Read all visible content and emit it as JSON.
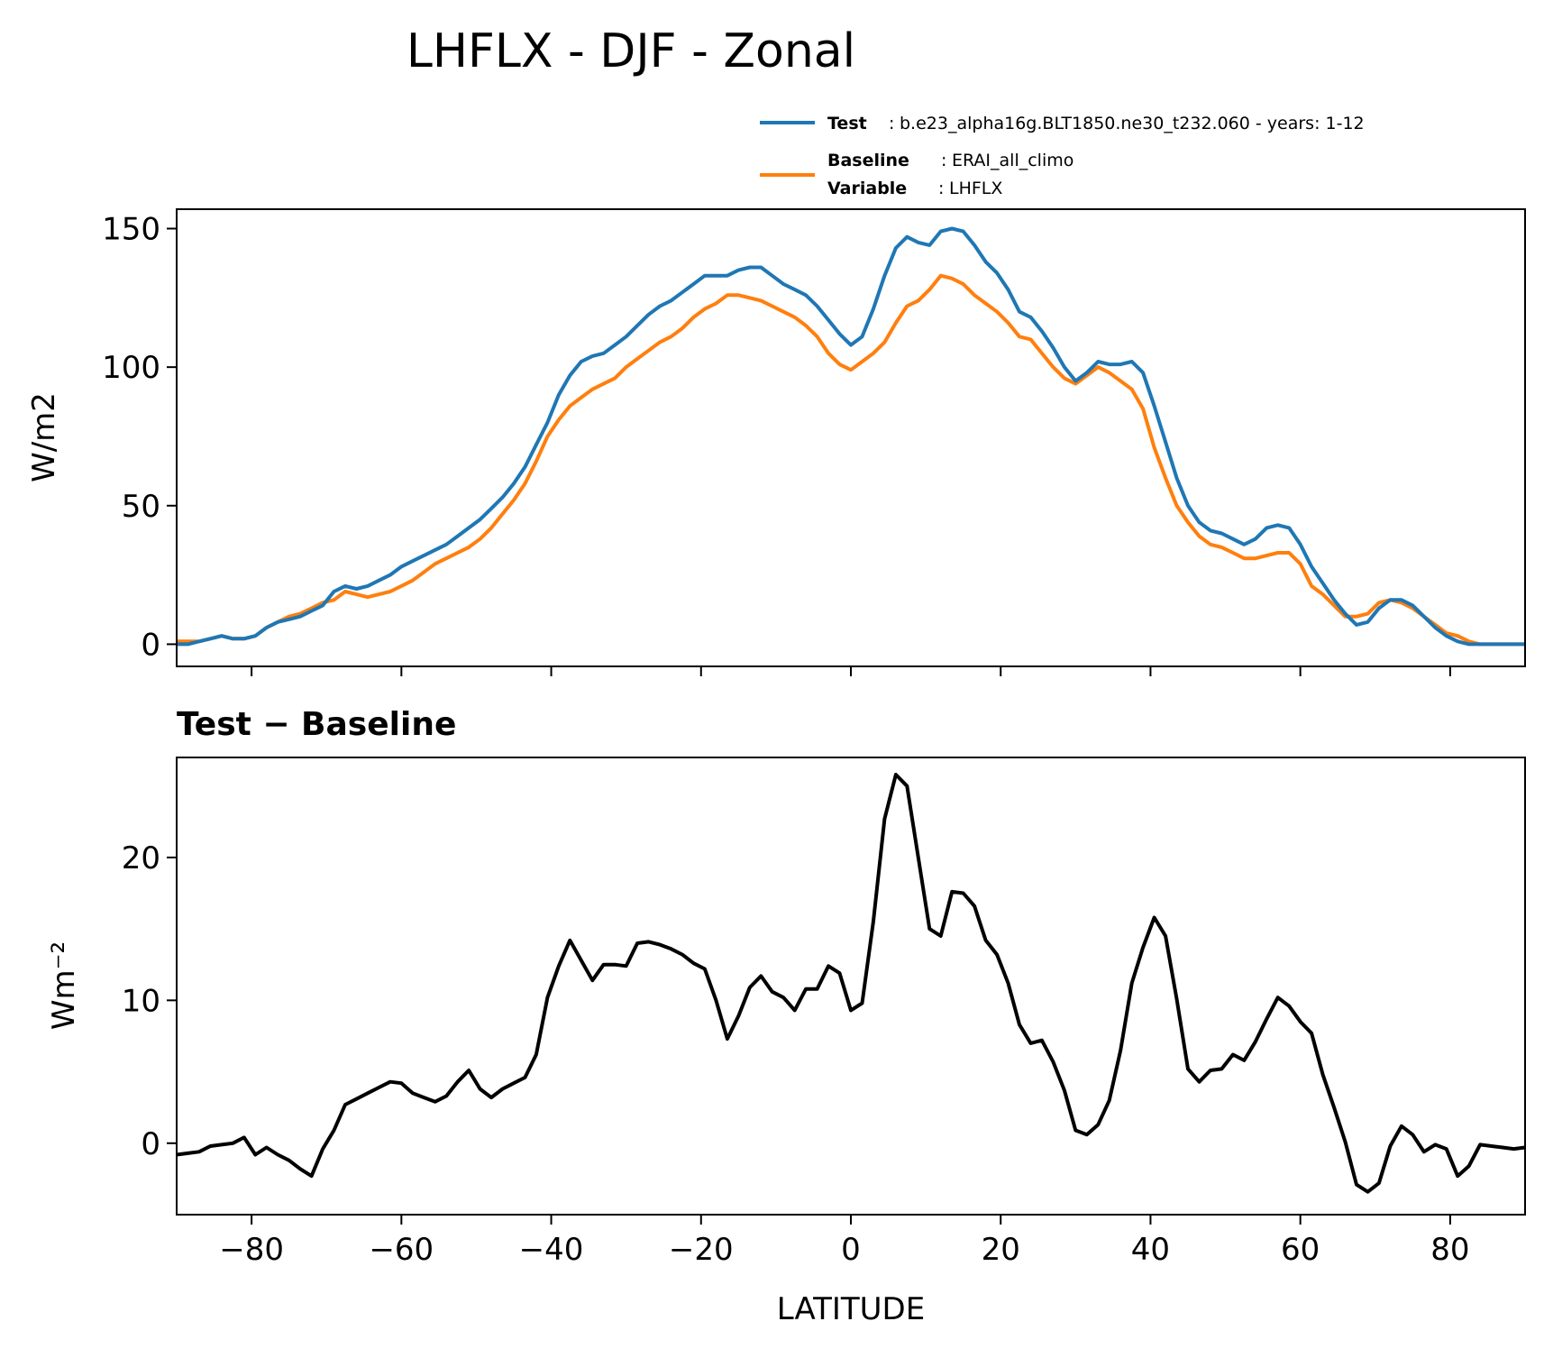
{
  "title": "LHFLX - DJF - Zonal",
  "legend": {
    "test_label": "Test",
    "test_value": "b.e23_alpha16g.BLT1850.ne30_t232.060 - years: 1-12",
    "baseline_label": "Baseline",
    "baseline_value": "ERAI_all_climo",
    "variable_label": "Variable",
    "variable_value": "LHFLX",
    "sep": ":"
  },
  "colors": {
    "test": "#1f77b4",
    "baseline": "#ff7f0e",
    "diff": "#000000"
  },
  "chart_data": [
    {
      "type": "line",
      "ylabel": "W/m2",
      "xlim": [
        -90,
        90
      ],
      "ylim": [
        -8,
        157
      ],
      "yticks": [
        0,
        50,
        100,
        150
      ],
      "x": [
        -90,
        -88.5,
        -87,
        -85.5,
        -84,
        -82.5,
        -81,
        -79.5,
        -78,
        -76.5,
        -75,
        -73.5,
        -72,
        -70.5,
        -69,
        -67.5,
        -66,
        -64.5,
        -63,
        -61.5,
        -60,
        -58.5,
        -57,
        -55.5,
        -54,
        -52.5,
        -51,
        -49.5,
        -48,
        -46.5,
        -45,
        -43.5,
        -42,
        -40.5,
        -39,
        -37.5,
        -36,
        -34.5,
        -33,
        -31.5,
        -30,
        -28.5,
        -27,
        -25.5,
        -24,
        -22.5,
        -21,
        -19.5,
        -18,
        -16.5,
        -15,
        -13.5,
        -12,
        -10.5,
        -9,
        -7.5,
        -6,
        -4.5,
        -3,
        -1.5,
        0,
        1.5,
        3,
        4.5,
        6,
        7.5,
        9,
        10.5,
        12,
        13.5,
        15,
        16.5,
        18,
        19.5,
        21,
        22.5,
        24,
        25.5,
        27,
        28.5,
        30,
        31.5,
        33,
        34.5,
        36,
        37.5,
        39,
        40.5,
        42,
        43.5,
        45,
        46.5,
        48,
        49.5,
        51,
        52.5,
        54,
        55.5,
        57,
        58.5,
        60,
        61.5,
        63,
        64.5,
        66,
        67.5,
        69,
        70.5,
        72,
        73.5,
        75,
        76.5,
        78,
        79.5,
        81,
        82.5,
        84,
        85.5,
        87,
        88.5,
        90
      ],
      "series": [
        {
          "name": "Test",
          "values": [
            0,
            0,
            1,
            2,
            3,
            2,
            2,
            3,
            6,
            8,
            9,
            10,
            12,
            14,
            19,
            21,
            20,
            21,
            23,
            25,
            28,
            30,
            32,
            34,
            36,
            39,
            42,
            45,
            49,
            53,
            58,
            64,
            72,
            80,
            90,
            97,
            102,
            104,
            105,
            108,
            111,
            115,
            119,
            122,
            124,
            127,
            130,
            133,
            133,
            133,
            135,
            136,
            136,
            133,
            130,
            128,
            126,
            122,
            117,
            112,
            108,
            111,
            121,
            133,
            143,
            147,
            145,
            144,
            149,
            150,
            149,
            144,
            138,
            134,
            128,
            120,
            118,
            113,
            107,
            100,
            95,
            98,
            102,
            101,
            101,
            102,
            98,
            86,
            73,
            60,
            50,
            44,
            41,
            40,
            38,
            36,
            38,
            42,
            43,
            42,
            36,
            28,
            22,
            16,
            11,
            7,
            8,
            13,
            16,
            16,
            14,
            10,
            6,
            3,
            1,
            0,
            0,
            0,
            0,
            0,
            0
          ]
        },
        {
          "name": "Baseline",
          "values": [
            1,
            1,
            1,
            2,
            3,
            2,
            2,
            3,
            6,
            8,
            10,
            11,
            13,
            15,
            16,
            19,
            18,
            17,
            18,
            19,
            21,
            23,
            26,
            29,
            31,
            33,
            35,
            38,
            42,
            47,
            52,
            58,
            66,
            75,
            81,
            86,
            89,
            92,
            94,
            96,
            100,
            103,
            106,
            109,
            111,
            114,
            118,
            121,
            123,
            126,
            126,
            125,
            124,
            122,
            120,
            118,
            115,
            111,
            105,
            101,
            99,
            102,
            105,
            109,
            116,
            122,
            124,
            128,
            133,
            132,
            130,
            126,
            123,
            120,
            116,
            111,
            110,
            105,
            100,
            96,
            94,
            97,
            100,
            98,
            95,
            92,
            85,
            71,
            60,
            50,
            44,
            39,
            36,
            35,
            33,
            31,
            31,
            32,
            33,
            33,
            29,
            21,
            18,
            14,
            10,
            10,
            11,
            15,
            16,
            15,
            13,
            10,
            7,
            4,
            3,
            1,
            0,
            0,
            0,
            0,
            0
          ]
        }
      ]
    },
    {
      "type": "line",
      "subtitle": "Test − Baseline",
      "xlabel": "LATITUDE",
      "ylabel": "Wm⁻²",
      "xlim": [
        -90,
        90
      ],
      "ylim": [
        -5,
        27
      ],
      "yticks": [
        0,
        10,
        20
      ],
      "xticks": [
        -80,
        -60,
        -40,
        -20,
        0,
        20,
        40,
        60,
        80
      ],
      "xtick_labels": [
        "−80",
        "−60",
        "−40",
        "−20",
        "0",
        "20",
        "40",
        "60",
        "80"
      ],
      "series": [
        {
          "name": "Test − Baseline",
          "values": [
            -0.8,
            -0.7,
            -0.6,
            -0.2,
            -0.1,
            0,
            0.4,
            -0.8,
            -0.3,
            -0.8,
            -1.2,
            -1.8,
            -2.3,
            -0.4,
            0.9,
            2.7,
            3.1,
            3.5,
            3.9,
            4.3,
            4.2,
            3.5,
            3.2,
            2.9,
            3.3,
            4.3,
            5.1,
            3.8,
            3.2,
            3.8,
            4.2,
            4.6,
            6.2,
            10.2,
            12.4,
            14.2,
            12.8,
            11.4,
            12.5,
            12.5,
            12.4,
            14,
            14.1,
            13.9,
            13.6,
            13.2,
            12.6,
            12.2,
            10,
            7.3,
            8.9,
            10.9,
            11.7,
            10.6,
            10.2,
            9.3,
            10.8,
            10.8,
            12.4,
            11.9,
            9.3,
            9.8,
            15.5,
            22.7,
            25.8,
            25,
            20,
            15,
            14.5,
            17.6,
            17.5,
            16.6,
            14.2,
            13.2,
            11.2,
            8.3,
            7,
            7.2,
            5.7,
            3.7,
            0.9,
            0.6,
            1.3,
            3,
            6.5,
            11.2,
            13.7,
            15.8,
            14.5,
            10.1,
            5.2,
            4.3,
            5.1,
            5.2,
            6.2,
            5.8,
            7.1,
            8.7,
            10.2,
            9.6,
            8.5,
            7.7,
            4.8,
            2.5,
            0.1,
            -2.9,
            -3.4,
            -2.8,
            -0.2,
            1.2,
            0.6,
            -0.6,
            -0.1,
            -0.4,
            -2.3,
            -1.6,
            -0.1,
            -0.2,
            -0.3,
            -0.4,
            -0.3
          ]
        }
      ]
    }
  ]
}
